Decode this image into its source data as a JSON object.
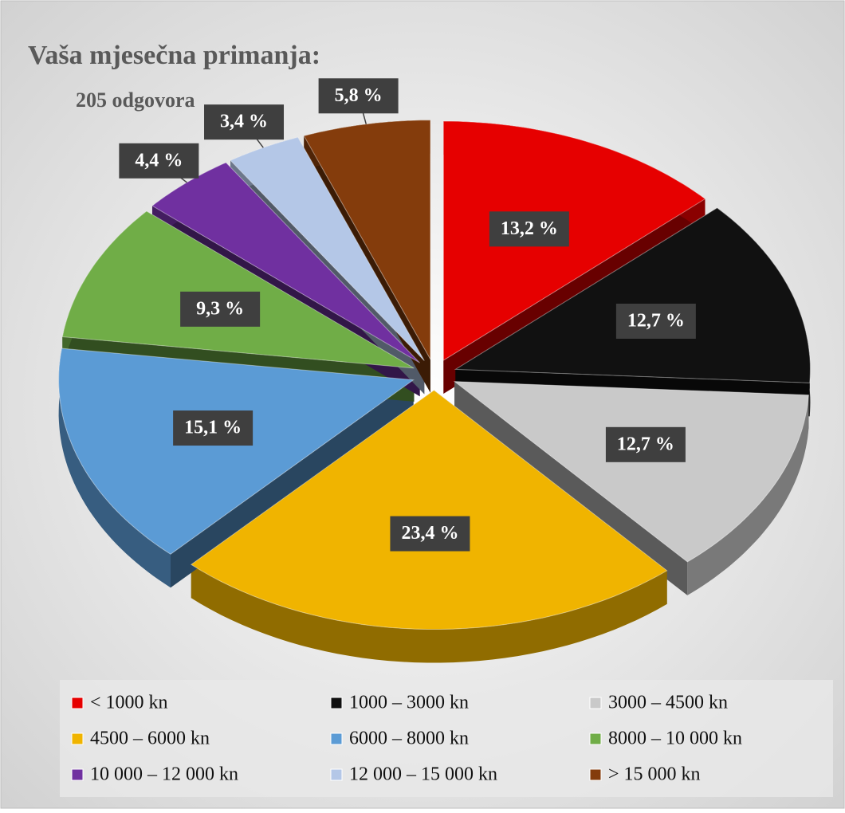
{
  "chart_data": {
    "type": "pie3d",
    "title": "Vaša mjesečna primanja:",
    "subtitle": "205 odgovora",
    "categories": [
      "< 1000 kn",
      "1000 – 3000 kn",
      "3000 – 4500 kn",
      "4500 – 6000 kn",
      "6000 – 8000 kn",
      "8000 – 10 000 kn",
      "10 000 – 12 000 kn",
      "12 000 – 15 000 kn",
      "> 15 000 kn"
    ],
    "values": [
      13.2,
      12.7,
      12.7,
      23.4,
      15.1,
      9.3,
      4.4,
      3.4,
      5.8
    ],
    "value_labels": [
      "13,2 %",
      "12,7 %",
      "12,7 %",
      "23,4 %",
      "15,1 %",
      "9,3 %",
      "4,4 %",
      "3,4 %",
      "5,8 %"
    ],
    "colors": [
      "#e60000",
      "#111111",
      "#c9c9c9",
      "#f0b400",
      "#5b9bd5",
      "#70ad47",
      "#7030a0",
      "#b4c7e7",
      "#843c0c"
    ],
    "legend": "bottom"
  }
}
